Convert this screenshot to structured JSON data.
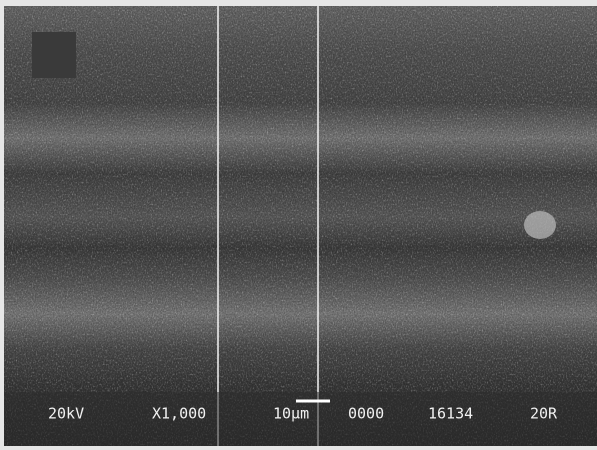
{
  "micrograph": {
    "info_bar": {
      "voltage": "20kV",
      "magnification": "X1,000",
      "scale_bar": "10µm",
      "field": "0000",
      "image_id": "16134",
      "detector": "20R"
    }
  }
}
